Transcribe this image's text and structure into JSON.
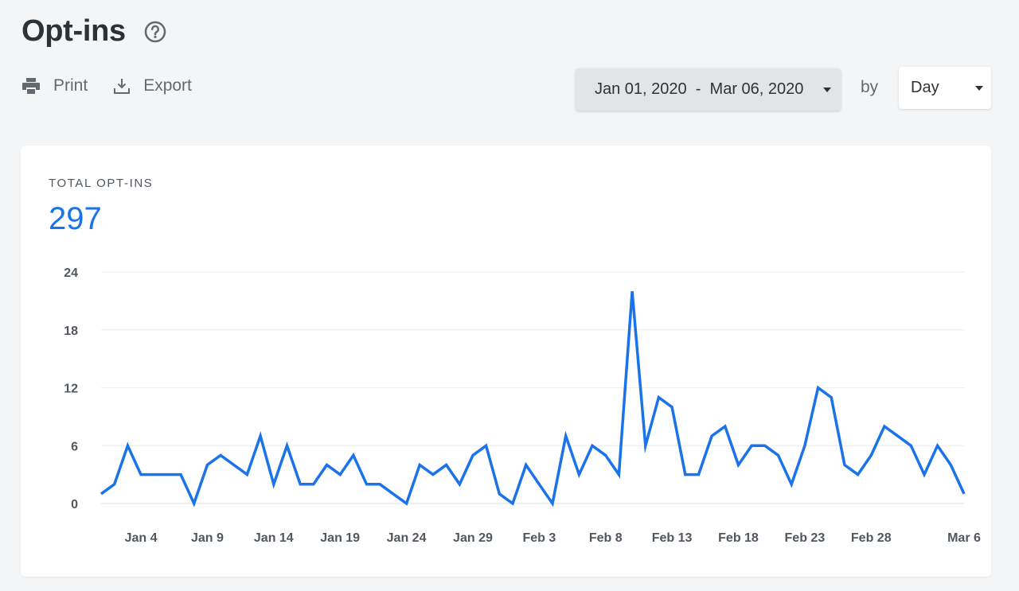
{
  "header": {
    "title": "Opt-ins",
    "help_icon": "help-circle-icon"
  },
  "toolbar": {
    "print": {
      "label": "Print",
      "icon": "printer-icon"
    },
    "export": {
      "label": "Export",
      "icon": "download-icon"
    }
  },
  "filters": {
    "date_range": "Jan 01, 2020  -  Mar 06, 2020",
    "by_label": "by",
    "interval": "Day"
  },
  "colors": {
    "accent": "#1a73e8"
  },
  "card": {
    "metric_label": "TOTAL OPT-INS",
    "metric_value": "297"
  },
  "chart_data": {
    "type": "line",
    "title": "",
    "xlabel": "",
    "ylabel": "",
    "ylim": [
      0,
      24
    ],
    "yticks": [
      "0",
      "6",
      "12",
      "18",
      "24"
    ],
    "xtick_labels": [
      {
        "label": "Jan 4",
        "date": "2020-01-04"
      },
      {
        "label": "Jan 9",
        "date": "2020-01-09"
      },
      {
        "label": "Jan 14",
        "date": "2020-01-14"
      },
      {
        "label": "Jan 19",
        "date": "2020-01-19"
      },
      {
        "label": "Jan 24",
        "date": "2020-01-24"
      },
      {
        "label": "Jan 29",
        "date": "2020-01-29"
      },
      {
        "label": "Feb 3",
        "date": "2020-02-03"
      },
      {
        "label": "Feb 8",
        "date": "2020-02-08"
      },
      {
        "label": "Feb 13",
        "date": "2020-02-13"
      },
      {
        "label": "Feb 18",
        "date": "2020-02-18"
      },
      {
        "label": "Feb 23",
        "date": "2020-02-23"
      },
      {
        "label": "Feb 28",
        "date": "2020-02-28"
      },
      {
        "label": "Mar 6",
        "date": "2020-03-06"
      }
    ],
    "grid": true,
    "legend": "none",
    "series": [
      {
        "color": "#1a73e8",
        "x": [
          "2020-01-01",
          "2020-01-02",
          "2020-01-03",
          "2020-01-04",
          "2020-01-05",
          "2020-01-06",
          "2020-01-07",
          "2020-01-08",
          "2020-01-09",
          "2020-01-10",
          "2020-01-11",
          "2020-01-12",
          "2020-01-13",
          "2020-01-14",
          "2020-01-15",
          "2020-01-16",
          "2020-01-17",
          "2020-01-18",
          "2020-01-19",
          "2020-01-20",
          "2020-01-21",
          "2020-01-22",
          "2020-01-23",
          "2020-01-24",
          "2020-01-25",
          "2020-01-26",
          "2020-01-27",
          "2020-01-28",
          "2020-01-29",
          "2020-01-30",
          "2020-01-31",
          "2020-02-01",
          "2020-02-02",
          "2020-02-03",
          "2020-02-04",
          "2020-02-05",
          "2020-02-06",
          "2020-02-07",
          "2020-02-08",
          "2020-02-09",
          "2020-02-10",
          "2020-02-11",
          "2020-02-12",
          "2020-02-13",
          "2020-02-14",
          "2020-02-15",
          "2020-02-16",
          "2020-02-17",
          "2020-02-18",
          "2020-02-19",
          "2020-02-20",
          "2020-02-21",
          "2020-02-22",
          "2020-02-23",
          "2020-02-24",
          "2020-02-25",
          "2020-02-26",
          "2020-02-27",
          "2020-02-28",
          "2020-02-29",
          "2020-03-01",
          "2020-03-02",
          "2020-03-03",
          "2020-03-04",
          "2020-03-05",
          "2020-03-06"
        ],
        "values": [
          1,
          2,
          6,
          3,
          3,
          3,
          3,
          0,
          4,
          5,
          4,
          3,
          7,
          2,
          6,
          2,
          2,
          4,
          3,
          5,
          2,
          2,
          1,
          0,
          4,
          3,
          4,
          2,
          5,
          6,
          1,
          0,
          4,
          2,
          0,
          7,
          3,
          6,
          5,
          3,
          22,
          6,
          11,
          10,
          3,
          3,
          7,
          8,
          4,
          6,
          6,
          5,
          2,
          6,
          12,
          11,
          4,
          3,
          5,
          8,
          7,
          6,
          3,
          6,
          4,
          1
        ]
      }
    ]
  }
}
